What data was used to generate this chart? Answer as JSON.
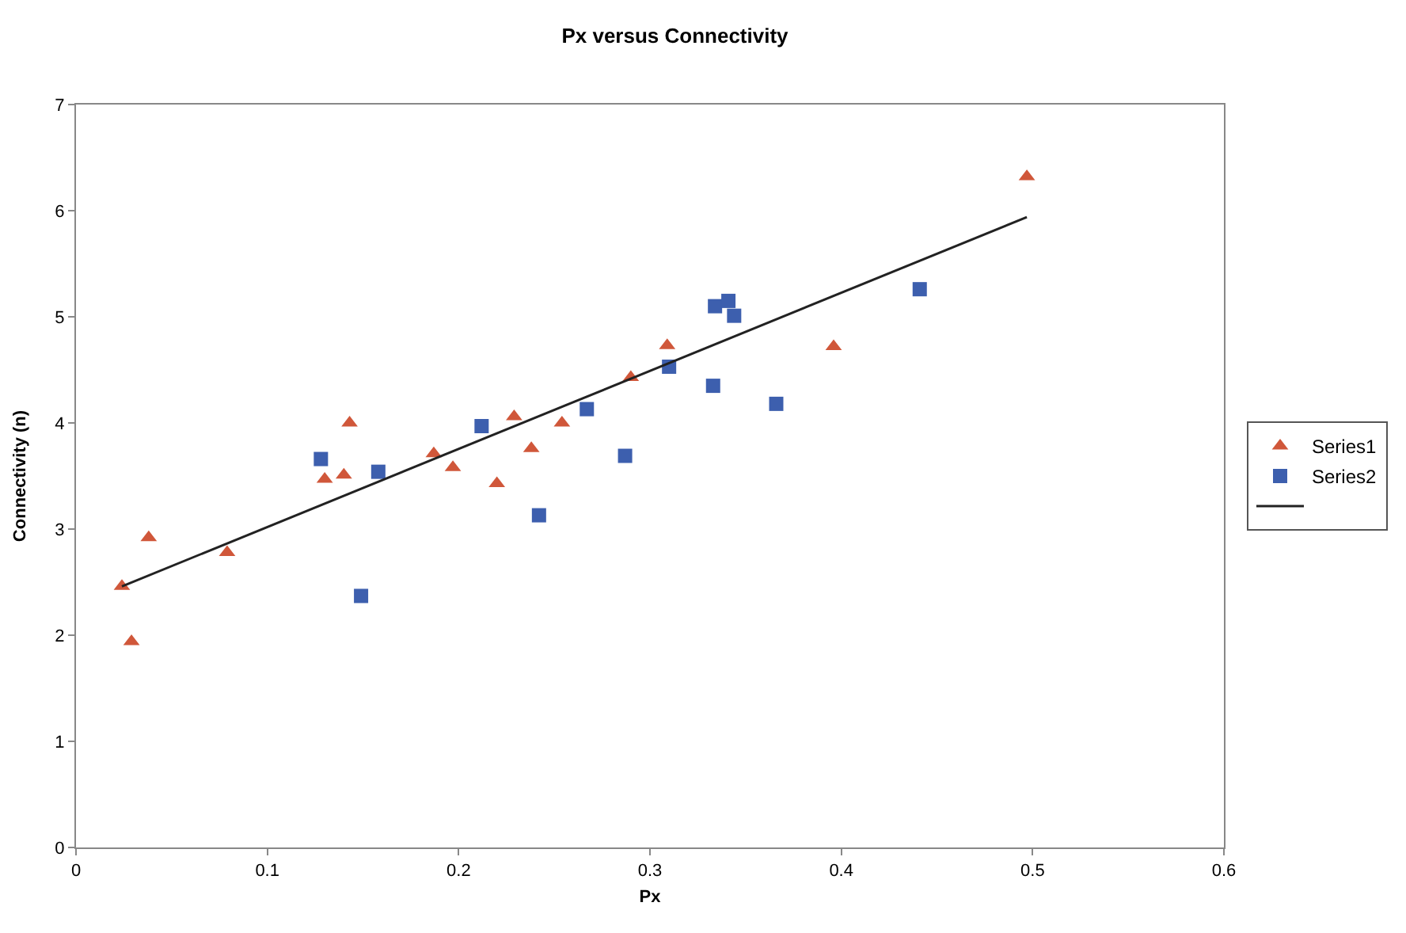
{
  "chart_data": {
    "type": "scatter",
    "title": "Px versus Connectivity",
    "xlabel": "Px",
    "ylabel": "Connectivity (n)",
    "xlim": [
      0,
      0.6
    ],
    "xticks": [
      0,
      0.1,
      0.2,
      0.3,
      0.4,
      0.5,
      0.6
    ],
    "ylim": [
      0,
      7
    ],
    "yticks": [
      0,
      1,
      2,
      3,
      4,
      5,
      6,
      7
    ],
    "grid": false,
    "legend": "right",
    "series": [
      {
        "name": "Series1",
        "color": "#d0573a",
        "marker": "triangle",
        "x": [
          0.024,
          0.029,
          0.038,
          0.079,
          0.13,
          0.14,
          0.143,
          0.187,
          0.197,
          0.22,
          0.229,
          0.238,
          0.254,
          0.29,
          0.309,
          0.396,
          0.497
        ],
        "values": [
          2.46,
          1.94,
          2.92,
          2.78,
          3.47,
          3.51,
          4.0,
          3.71,
          3.58,
          3.43,
          4.06,
          3.76,
          4.0,
          4.43,
          4.73,
          4.72,
          6.32
        ]
      },
      {
        "name": "Series2",
        "color": "#3d5fae",
        "marker": "square",
        "x": [
          0.128,
          0.149,
          0.158,
          0.212,
          0.242,
          0.267,
          0.287,
          0.31,
          0.333,
          0.334,
          0.341,
          0.344,
          0.366,
          0.441
        ],
        "values": [
          3.66,
          2.37,
          3.54,
          3.97,
          3.13,
          4.13,
          3.69,
          4.53,
          4.35,
          5.1,
          5.15,
          5.01,
          4.18,
          5.26
        ]
      },
      {
        "type": "line",
        "color": "#222222",
        "marker": "none",
        "x": [
          0.024,
          0.497
        ],
        "values": [
          2.46,
          5.94
        ]
      }
    ]
  }
}
